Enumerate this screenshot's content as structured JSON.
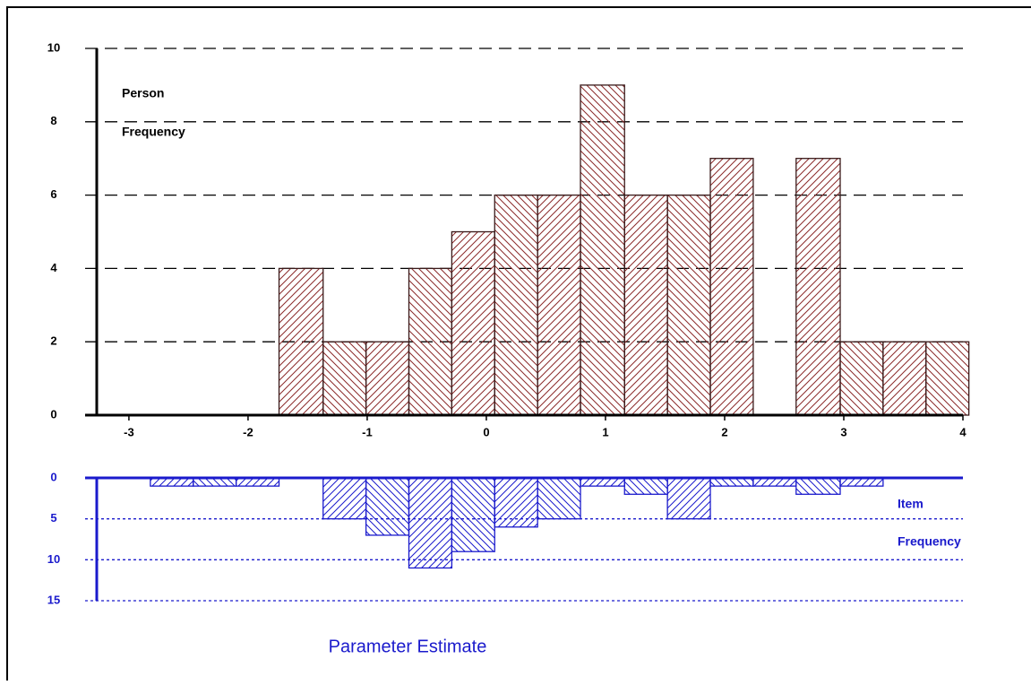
{
  "chart_data": [
    {
      "type": "histogram",
      "annotations": [
        "Person",
        "Frequency"
      ],
      "bins": [
        -1.74,
        -1.37,
        -1.01,
        -0.65,
        -0.29,
        0.07,
        0.43,
        0.79,
        1.16,
        1.52,
        1.88,
        2.24,
        2.6,
        2.97,
        3.33,
        3.69,
        4.05
      ],
      "values": [
        4,
        2,
        2,
        4,
        5,
        6,
        6,
        9,
        6,
        6,
        7,
        0,
        7,
        2,
        2,
        2
      ],
      "color": "#8b2a2a",
      "xlim": [
        -3.27,
        4
      ],
      "xticks": [
        -3,
        -2,
        -1,
        0,
        1,
        2,
        3,
        4
      ],
      "ylim": [
        0,
        10
      ],
      "yticks": [
        0,
        2,
        4,
        6,
        8,
        10
      ],
      "grid": true
    },
    {
      "type": "histogram",
      "annotations": [
        "Item",
        "Frequency"
      ],
      "x_label": "Parameter Estimate",
      "bins": [
        -2.82,
        -2.46,
        -2.1,
        -1.74,
        -1.37,
        -1.01,
        -0.65,
        -0.29,
        0.07,
        0.43,
        0.79,
        1.16,
        1.52,
        1.88,
        2.24,
        2.6,
        2.97,
        3.33
      ],
      "values": [
        1,
        1,
        1,
        0,
        5,
        7,
        11,
        9,
        6,
        5,
        1,
        2,
        5,
        1,
        1,
        2,
        1
      ],
      "color": "#1a1acc",
      "xlim": [
        -3.27,
        4
      ],
      "ylim": [
        0,
        15
      ],
      "yticks": [
        0,
        5,
        10,
        15
      ],
      "inverted": true,
      "grid": true
    }
  ]
}
